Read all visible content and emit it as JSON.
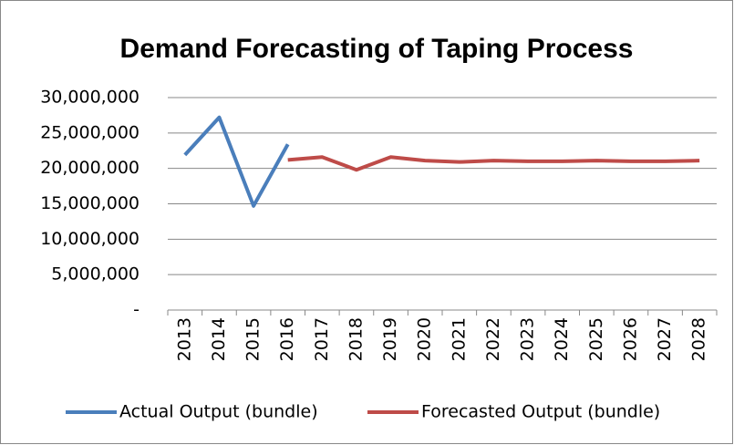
{
  "chart_data": {
    "type": "line",
    "title": "Demand Forecasting of Taping Process",
    "categories": [
      "2013",
      "2014",
      "2015",
      "2016",
      "2017",
      "2018",
      "2019",
      "2020",
      "2021",
      "2022",
      "2023",
      "2024",
      "2025",
      "2026",
      "2027",
      "2028"
    ],
    "series": [
      {
        "name": "Actual Output (bundle)",
        "color": "#4a7ebb",
        "values": [
          21900000,
          27200000,
          14700000,
          23400000,
          null,
          null,
          null,
          null,
          null,
          null,
          null,
          null,
          null,
          null,
          null,
          null
        ]
      },
      {
        "name": "Forecasted Output (bundle)",
        "color": "#be4b48",
        "values": [
          null,
          null,
          null,
          21200000,
          21600000,
          19800000,
          21600000,
          21100000,
          20900000,
          21100000,
          21000000,
          21000000,
          21100000,
          21000000,
          21000000,
          21100000
        ]
      }
    ],
    "ylim": [
      0,
      30000000
    ],
    "yticks": [
      {
        "value": 0,
        "label": "-"
      },
      {
        "value": 5000000,
        "label": "5,000,000"
      },
      {
        "value": 10000000,
        "label": "10,000,000"
      },
      {
        "value": 15000000,
        "label": "15,000,000"
      },
      {
        "value": 20000000,
        "label": "20,000,000"
      },
      {
        "value": 25000000,
        "label": "25,000,000"
      },
      {
        "value": 30000000,
        "label": "30,000,000"
      }
    ],
    "grid": true,
    "legend": "bottom"
  }
}
